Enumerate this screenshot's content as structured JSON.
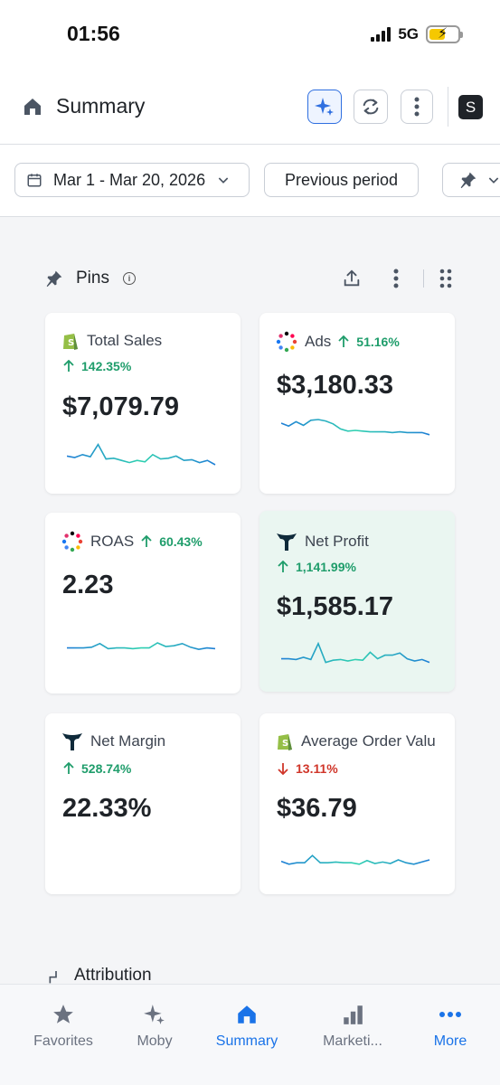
{
  "status": {
    "time": "01:56",
    "network": "5G"
  },
  "header": {
    "title": "Summary",
    "avatar_letter": "S"
  },
  "filters": {
    "date_range": "Mar 1 - Mar 20, 2026",
    "compare": "Previous period"
  },
  "pins": {
    "label": "Pins"
  },
  "cards": [
    {
      "title": "Total Sales",
      "change": "142.35%",
      "direction": "up",
      "value": "$7,079.79",
      "icon": "shopify-icon",
      "spark": [
        42,
        40,
        44,
        41,
        58,
        38,
        39,
        36,
        33,
        36,
        34,
        44,
        38,
        39,
        42,
        36,
        37,
        33,
        36,
        30
      ]
    },
    {
      "title": "Ads",
      "change": "51.16%",
      "direction": "up",
      "value": "$3,180.33",
      "icon": "ads-dots-icon",
      "spark": [
        50,
        46,
        52,
        47,
        54,
        55,
        53,
        49,
        42,
        39,
        40,
        39,
        38,
        38,
        38,
        37,
        38,
        37,
        37,
        37,
        34
      ]
    },
    {
      "title": "ROAS",
      "change": "60.43%",
      "direction": "up",
      "value": "2.23",
      "icon": "ads-dots-icon",
      "spark": [
        38,
        38,
        38,
        39,
        44,
        37,
        38,
        38,
        37,
        38,
        38,
        45,
        40,
        41,
        44,
        39,
        36,
        38,
        37
      ]
    },
    {
      "title": "Net Profit",
      "change": "1,141.99%",
      "direction": "up",
      "value": "$1,585.17",
      "icon": "triple-whale-icon",
      "spark": [
        38,
        38,
        37,
        40,
        37,
        59,
        33,
        36,
        37,
        35,
        37,
        36,
        47,
        38,
        43,
        43,
        46,
        38,
        35,
        37,
        33
      ]
    },
    {
      "title": "Net Margin",
      "change": "528.74%",
      "direction": "up",
      "value": "22.33%",
      "icon": "triple-whale-icon",
      "spark": []
    },
    {
      "title": "Average Order Valu",
      "change": "13.11%",
      "direction": "down",
      "value": "$36.79",
      "icon": "shopify-icon",
      "spark": [
        38,
        34,
        36,
        36,
        46,
        36,
        36,
        37,
        36,
        36,
        34,
        39,
        35,
        37,
        35,
        40,
        36,
        34,
        37,
        40
      ]
    }
  ],
  "attribution": {
    "label": "Attribution"
  },
  "nav": {
    "items": [
      {
        "label": "Favorites",
        "icon": "star-icon"
      },
      {
        "label": "Moby",
        "icon": "sparkle-icon"
      },
      {
        "label": "Summary",
        "icon": "home-icon"
      },
      {
        "label": "Marketi...",
        "icon": "bar-chart-icon"
      },
      {
        "label": "More",
        "icon": "dots-icon"
      }
    ]
  },
  "colors": {
    "accent": "#1a73e8",
    "positive": "#1f9d6b",
    "negative": "#d0362a",
    "spark": "#22b8c8"
  }
}
